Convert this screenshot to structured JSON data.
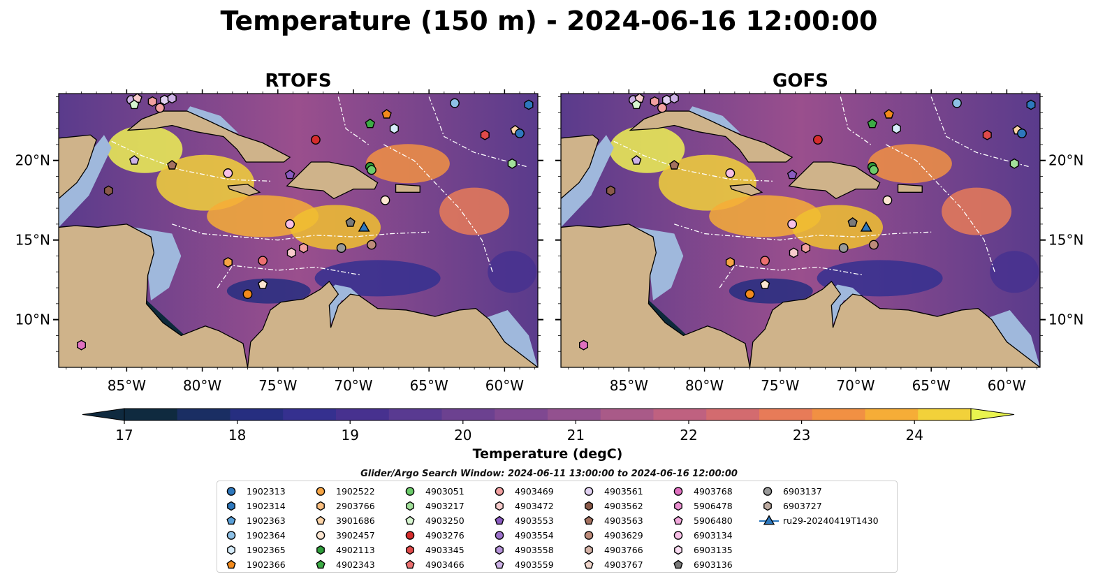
{
  "figure": {
    "title": "Temperature (150 m) - 2024-06-16 12:00:00",
    "search_window": "Glider/Argo Search Window: 2024-06-11 13:00:00 to 2024-06-16 12:00:00"
  },
  "map": {
    "lon_range": [
      -89.5,
      -57.8
    ],
    "lat_range": [
      7.0,
      24.2
    ],
    "lon_ticks": [
      -85,
      -80,
      -75,
      -70,
      -65,
      -60
    ],
    "lon_tick_labels": [
      "85°W",
      "80°W",
      "75°W",
      "70°W",
      "65°W",
      "60°W"
    ],
    "lat_ticks": [
      10,
      15,
      20
    ],
    "lat_tick_labels": [
      "10°N",
      "15°N",
      "20°N"
    ],
    "panels": [
      {
        "name": "RTOFS",
        "title": "RTOFS",
        "lat_label_side": "left"
      },
      {
        "name": "GOFS",
        "title": "GOFS",
        "lat_label_side": "right"
      }
    ],
    "colors": {
      "land": "#cfb38a",
      "shelf": "#9fb8dc",
      "deep_cold": "#0d2a3b",
      "eez_line": "#ffffff"
    }
  },
  "colorbar": {
    "label": "Temperature (degC)",
    "min": 17,
    "max": 24.5,
    "step": 0.5,
    "tick_values": [
      17,
      18,
      19,
      20,
      21,
      22,
      23,
      24
    ],
    "tick_labels": [
      "17",
      "18",
      "19",
      "20",
      "21",
      "22",
      "23",
      "24"
    ],
    "colors": [
      "#0f2a3f",
      "#1a2e63",
      "#262e80",
      "#35308f",
      "#47318f",
      "#593a91",
      "#6c4190",
      "#7f4891",
      "#93518f",
      "#a95a88",
      "#bf6180",
      "#d36b6f",
      "#e77b58",
      "#f19043",
      "#f6ad37",
      "#f2d13a",
      "#e9f44f"
    ]
  },
  "legend": {
    "entries": [
      {
        "label": "1902313",
        "marker": "circle",
        "color": "#2e78bd"
      },
      {
        "label": "1902314",
        "marker": "hexagon",
        "color": "#2e78bd"
      },
      {
        "label": "1902363",
        "marker": "pentagon",
        "color": "#5aa0d8"
      },
      {
        "label": "1902364",
        "marker": "circle",
        "color": "#8dc0e6"
      },
      {
        "label": "1902365",
        "marker": "hexagon",
        "color": "#d6ecfa"
      },
      {
        "label": "1902366",
        "marker": "pentagon",
        "color": "#f28a1c"
      },
      {
        "label": "1902522",
        "marker": "circle",
        "color": "#f6a545"
      },
      {
        "label": "2903766",
        "marker": "hexagon",
        "color": "#fbbf80"
      },
      {
        "label": "3901686",
        "marker": "pentagon",
        "color": "#fdd4a8"
      },
      {
        "label": "3902457",
        "marker": "circle",
        "color": "#fde6d1"
      },
      {
        "label": "4902113",
        "marker": "hexagon",
        "color": "#2f9e3b"
      },
      {
        "label": "4902343",
        "marker": "pentagon",
        "color": "#3cab45"
      },
      {
        "label": "4903051",
        "marker": "circle",
        "color": "#6ccb6a"
      },
      {
        "label": "4903217",
        "marker": "hexagon",
        "color": "#a2e09a"
      },
      {
        "label": "4903250",
        "marker": "pentagon",
        "color": "#d6f5cf"
      },
      {
        "label": "4903276",
        "marker": "circle",
        "color": "#d62c2c"
      },
      {
        "label": "4903345",
        "marker": "hexagon",
        "color": "#e04a4a"
      },
      {
        "label": "4903466",
        "marker": "pentagon",
        "color": "#ec7070"
      },
      {
        "label": "4903469",
        "marker": "circle",
        "color": "#f2a0a0"
      },
      {
        "label": "4903472",
        "marker": "hexagon",
        "color": "#f8cccc"
      },
      {
        "label": "4903553",
        "marker": "pentagon",
        "color": "#8a5bc0"
      },
      {
        "label": "4903554",
        "marker": "circle",
        "color": "#9d72cc"
      },
      {
        "label": "4903558",
        "marker": "hexagon",
        "color": "#b693da"
      },
      {
        "label": "4903559",
        "marker": "pentagon",
        "color": "#cdb2e6"
      },
      {
        "label": "4903561",
        "marker": "circle",
        "color": "#e2d2f2"
      },
      {
        "label": "4903562",
        "marker": "hexagon",
        "color": "#8a5a4a"
      },
      {
        "label": "4903563",
        "marker": "pentagon",
        "color": "#a3705f"
      },
      {
        "label": "4903629",
        "marker": "circle",
        "color": "#bd8b7a"
      },
      {
        "label": "4903766",
        "marker": "hexagon",
        "color": "#d6b3a8"
      },
      {
        "label": "4903767",
        "marker": "pentagon",
        "color": "#f0d6cc"
      },
      {
        "label": "4903768",
        "marker": "circle",
        "color": "#e070c0"
      },
      {
        "label": "5906478",
        "marker": "hexagon",
        "color": "#ea8fd0"
      },
      {
        "label": "5906480",
        "marker": "pentagon",
        "color": "#f2a8dc"
      },
      {
        "label": "6903134",
        "marker": "circle",
        "color": "#f7bfe6"
      },
      {
        "label": "6903135",
        "marker": "hexagon",
        "color": "#fbdcf2"
      },
      {
        "label": "6903136",
        "marker": "pentagon",
        "color": "#7a7a7a"
      },
      {
        "label": "6903137",
        "marker": "circle",
        "color": "#999999"
      },
      {
        "label": "6903727",
        "marker": "hexagon",
        "color": "#bcaaa0"
      },
      {
        "label": "ru29-20240419T1430",
        "marker": "triangle-line",
        "color": "#2e78bd"
      }
    ]
  },
  "floats": [
    {
      "lon": -84.7,
      "lat": 23.8,
      "marker": "circle",
      "color": "#cdb2e6"
    },
    {
      "lon": -84.3,
      "lat": 23.9,
      "marker": "pentagon",
      "color": "#f8cccc"
    },
    {
      "lon": -84.5,
      "lat": 23.5,
      "marker": "pentagon",
      "color": "#d6f5cf"
    },
    {
      "lon": -83.3,
      "lat": 23.7,
      "marker": "hexagon",
      "color": "#f2a0a0"
    },
    {
      "lon": -82.8,
      "lat": 23.3,
      "marker": "circle",
      "color": "#f2a0a0"
    },
    {
      "lon": -82.5,
      "lat": 23.8,
      "marker": "hexagon",
      "color": "#e2d2f2"
    },
    {
      "lon": -82.0,
      "lat": 23.9,
      "marker": "hexagon",
      "color": "#cdb2e6"
    },
    {
      "lon": -72.5,
      "lat": 21.3,
      "marker": "circle",
      "color": "#d62c2c"
    },
    {
      "lon": -68.9,
      "lat": 22.3,
      "marker": "pentagon",
      "color": "#3cab45"
    },
    {
      "lon": -67.8,
      "lat": 22.9,
      "marker": "pentagon",
      "color": "#f28a1c"
    },
    {
      "lon": -67.3,
      "lat": 22.0,
      "marker": "hexagon",
      "color": "#d6ecfa"
    },
    {
      "lon": -63.3,
      "lat": 23.6,
      "marker": "circle",
      "color": "#8dc0e6"
    },
    {
      "lon": -61.3,
      "lat": 21.6,
      "marker": "hexagon",
      "color": "#e04a4a"
    },
    {
      "lon": -59.3,
      "lat": 21.9,
      "marker": "pentagon",
      "color": "#fdd4a8"
    },
    {
      "lon": -59.0,
      "lat": 21.7,
      "marker": "circle",
      "color": "#2e78bd"
    },
    {
      "lon": -58.4,
      "lat": 23.5,
      "marker": "hexagon",
      "color": "#2e78bd"
    },
    {
      "lon": -84.5,
      "lat": 20.0,
      "marker": "pentagon",
      "color": "#cdb2e6"
    },
    {
      "lon": -82.0,
      "lat": 19.7,
      "marker": "pentagon",
      "color": "#a3705f"
    },
    {
      "lon": -78.3,
      "lat": 19.2,
      "marker": "circle",
      "color": "#f7bfe6"
    },
    {
      "lon": -74.2,
      "lat": 19.1,
      "marker": "pentagon",
      "color": "#8a5bc0"
    },
    {
      "lon": -68.9,
      "lat": 19.6,
      "marker": "circle",
      "color": "#2f9e3b"
    },
    {
      "lon": -68.8,
      "lat": 19.4,
      "marker": "circle",
      "color": "#6ccb6a"
    },
    {
      "lon": -59.5,
      "lat": 19.8,
      "marker": "hexagon",
      "color": "#a2e09a"
    },
    {
      "lon": -86.2,
      "lat": 18.1,
      "marker": "hexagon",
      "color": "#8a5a4a"
    },
    {
      "lon": -67.9,
      "lat": 17.5,
      "marker": "circle",
      "color": "#fde6d1"
    },
    {
      "lon": -74.2,
      "lat": 16.0,
      "marker": "circle",
      "color": "#f7bfe6"
    },
    {
      "lon": -70.2,
      "lat": 16.1,
      "marker": "pentagon",
      "color": "#7a7a7a"
    },
    {
      "lon": -69.3,
      "lat": 15.8,
      "marker": "triangle",
      "color": "#2e78bd"
    },
    {
      "lon": -68.8,
      "lat": 14.7,
      "marker": "circle",
      "color": "#bd8b7a"
    },
    {
      "lon": -70.8,
      "lat": 14.5,
      "marker": "circle",
      "color": "#999999"
    },
    {
      "lon": -73.3,
      "lat": 14.5,
      "marker": "hexagon",
      "color": "#f2a0a0"
    },
    {
      "lon": -74.1,
      "lat": 14.2,
      "marker": "hexagon",
      "color": "#f8cccc"
    },
    {
      "lon": -76.0,
      "lat": 13.7,
      "marker": "circle",
      "color": "#ec7070"
    },
    {
      "lon": -78.3,
      "lat": 13.6,
      "marker": "hexagon",
      "color": "#f6a545"
    },
    {
      "lon": -76.0,
      "lat": 12.2,
      "marker": "pentagon",
      "color": "#fde6d1"
    },
    {
      "lon": -77.0,
      "lat": 11.6,
      "marker": "circle",
      "color": "#f28a1c"
    },
    {
      "lon": -88.0,
      "lat": 8.4,
      "marker": "hexagon",
      "color": "#e070c0"
    }
  ]
}
